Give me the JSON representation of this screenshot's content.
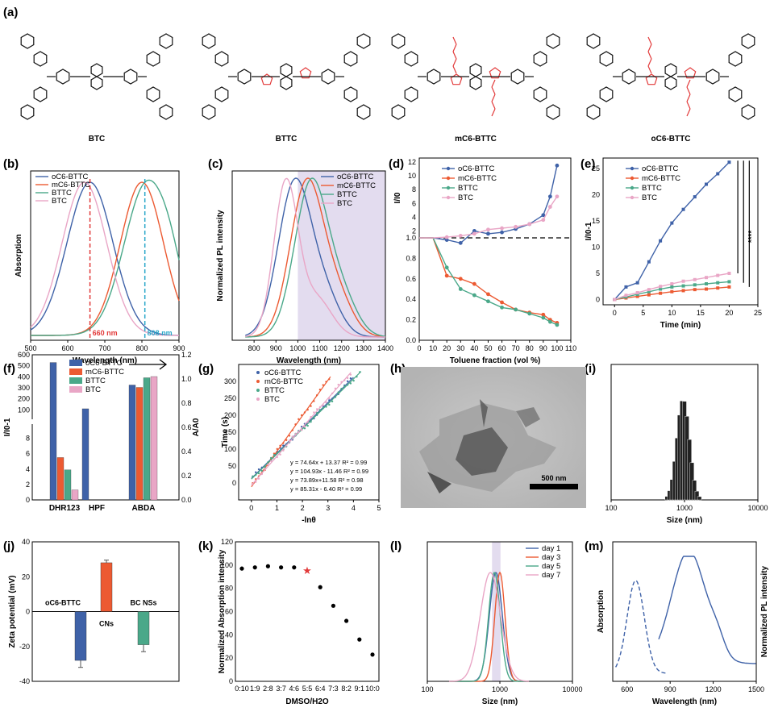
{
  "colors": {
    "c0": "#3f62a8",
    "c1": "#ec5a32",
    "c2": "#4aa889",
    "c3": "#e9a6c6",
    "red": "#e23a3a",
    "cyan": "#2aa7c9",
    "shade": "#e3dcef",
    "black": "#222222"
  },
  "panel_letters": {
    "a": "(a)",
    "b": "(b)",
    "c": "(c)",
    "d": "(d)",
    "e": "(e)",
    "f": "(f)",
    "g": "(g)",
    "h": "(h)",
    "i": "(i)",
    "j": "(j)",
    "k": "(k)",
    "l": "(l)",
    "m": "(m)"
  },
  "molecules": [
    "BTC",
    "BTTC",
    "mC6-BTTC",
    "oC6-BTTC"
  ],
  "legend4": [
    "oC6-BTTC",
    "mC6-BTTC",
    "BTTC",
    "BTC"
  ],
  "chart_data": [
    {
      "panel": "b",
      "type": "line",
      "xlabel": "Wavelength (nm)",
      "ylabel": "Absorption",
      "xlim": [
        500,
        900
      ],
      "xticks": [
        "500",
        "600",
        "700",
        "800",
        "900"
      ],
      "annotations": [
        "660 nm",
        "808 nm"
      ],
      "vlines": [
        660,
        808
      ],
      "series": [
        {
          "name": "oC6-BTTC",
          "peak": 660
        },
        {
          "name": "mC6-BTTC",
          "peak": 800
        },
        {
          "name": "BTTC",
          "peak": 815
        },
        {
          "name": "BTC",
          "peak": 645
        }
      ]
    },
    {
      "panel": "c",
      "type": "line",
      "xlabel": "Wavelength (nm)",
      "ylabel": "Normalized PL intensity",
      "xlim": [
        700,
        1400
      ],
      "xticks": [
        "800",
        "900",
        "1000",
        "1100",
        "1200",
        "1300",
        "1400"
      ],
      "shaded_from": 1000,
      "series": [
        {
          "name": "oC6-BTTC",
          "peak": 985
        },
        {
          "name": "mC6-BTTC",
          "peak": 1040
        },
        {
          "name": "BTTC",
          "peak": 1060
        },
        {
          "name": "BTC",
          "peak": 945
        }
      ]
    },
    {
      "panel": "d",
      "type": "line",
      "xlabel": "Toluene fraction (vol %)",
      "ylabel": "I/I0",
      "xticks": [
        "0",
        "10",
        "20",
        "30",
        "40",
        "50",
        "60",
        "70",
        "80",
        "90",
        "100",
        "110"
      ],
      "yticks_low": [
        "0.0",
        "0.2",
        "0.4",
        "0.6",
        "0.8",
        "1.0"
      ],
      "yticks_high": [
        "2",
        "4",
        "6",
        "8",
        "10",
        "12"
      ],
      "series": [
        {
          "name": "oC6-BTTC",
          "x": [
            20,
            30,
            40,
            50,
            60,
            70,
            80,
            90,
            95,
            100
          ],
          "y": [
            0.98,
            0.95,
            2.0,
            1.6,
            1.8,
            2.3,
            3.0,
            4.3,
            7.0,
            11.5
          ]
        },
        {
          "name": "mC6-BTTC",
          "x": [
            20,
            30,
            40,
            50,
            60,
            70,
            80,
            90,
            95,
            100
          ],
          "y": [
            0.63,
            0.6,
            0.55,
            0.45,
            0.37,
            0.3,
            0.27,
            0.25,
            0.2,
            0.17
          ]
        },
        {
          "name": "BTTC",
          "x": [
            20,
            30,
            40,
            50,
            60,
            70,
            80,
            90,
            95,
            100
          ],
          "y": [
            0.71,
            0.5,
            0.44,
            0.38,
            0.32,
            0.3,
            0.26,
            0.22,
            0.18,
            0.15
          ]
        },
        {
          "name": "BTC",
          "x": [
            20,
            30,
            40,
            50,
            60,
            70,
            80,
            90,
            95,
            100
          ],
          "y": [
            1.1,
            1.3,
            1.6,
            2.2,
            2.4,
            2.6,
            3.0,
            3.6,
            5.5,
            7.0
          ]
        }
      ]
    },
    {
      "panel": "e",
      "type": "line",
      "xlabel": "Time (min)",
      "ylabel": "I/I0-1",
      "xlim": [
        -2,
        25
      ],
      "ylim": [
        -1,
        27
      ],
      "xticks": [
        "0",
        "5",
        "10",
        "15",
        "20",
        "25"
      ],
      "yticks": [
        "0",
        "5",
        "10",
        "15",
        "20",
        "25"
      ],
      "significance": "****",
      "series": [
        {
          "name": "oC6-BTTC",
          "x": [
            0,
            2,
            4,
            6,
            8,
            10,
            12,
            14,
            16,
            18,
            20
          ],
          "y": [
            0,
            2.4,
            3.2,
            7.2,
            11.2,
            14.6,
            17.2,
            19.6,
            22.0,
            24.0,
            26.2
          ]
        },
        {
          "name": "mC6-BTTC",
          "x": [
            0,
            2,
            4,
            6,
            8,
            10,
            12,
            14,
            16,
            18,
            20
          ],
          "y": [
            0,
            0.3,
            0.6,
            0.9,
            1.2,
            1.5,
            1.7,
            1.9,
            2.0,
            2.2,
            2.4
          ]
        },
        {
          "name": "BTTC",
          "x": [
            0,
            2,
            4,
            6,
            8,
            10,
            12,
            14,
            16,
            18,
            20
          ],
          "y": [
            0,
            0.5,
            1.0,
            1.5,
            2.0,
            2.4,
            2.6,
            2.8,
            3.0,
            3.2,
            3.4
          ]
        },
        {
          "name": "BTC",
          "x": [
            0,
            2,
            4,
            6,
            8,
            10,
            12,
            14,
            16,
            18,
            20
          ],
          "y": [
            0,
            0.8,
            1.3,
            1.9,
            2.5,
            3.0,
            3.5,
            3.8,
            4.2,
            4.6,
            5.0
          ]
        }
      ]
    },
    {
      "panel": "f",
      "type": "bar",
      "categories": [
        "DHR123",
        "HPF",
        "ABDA"
      ],
      "ylabel_left": "I/I0-1",
      "ylabel_right": "A/A0",
      "yticks_left_high": [
        "100",
        "200",
        "300",
        "400",
        "500",
        "600"
      ],
      "yticks_left_low": [
        "0",
        "2",
        "4",
        "6",
        "8"
      ],
      "yticks_right": [
        "0.0",
        "0.2",
        "0.4",
        "0.6",
        "0.8",
        "1.0",
        "1.2"
      ],
      "series": [
        {
          "name": "oC6-BTTC",
          "values": [
            530,
            110,
            0.95
          ]
        },
        {
          "name": "mC6-BTTC",
          "values": [
            5.5,
            0,
            0.93
          ]
        },
        {
          "name": "BTTC",
          "values": [
            3.9,
            0,
            1.01
          ]
        },
        {
          "name": "BTC",
          "values": [
            1.3,
            0,
            1.02
          ]
        }
      ]
    },
    {
      "panel": "g",
      "type": "scatter",
      "xlabel": "-lnθ",
      "ylabel": "Time (s)",
      "xlim": [
        -0.5,
        5
      ],
      "ylim": [
        -50,
        350
      ],
      "xticks": [
        "0",
        "1",
        "2",
        "3",
        "4",
        "5"
      ],
      "yticks": [
        "0",
        "50",
        "100",
        "150",
        "200",
        "250",
        "300"
      ],
      "fits": [
        "y = 74.64x + 13.37   R² = 0.99",
        "y = 104.93x - 11.46  R² = 0.99",
        "y = 73.89x+11.58    R² = 0.98",
        "y = 85.31x - 6.40    R² = 0.99"
      ],
      "series": [
        {
          "name": "oC6-BTTC",
          "slope": 74.64,
          "intercept": 13.37,
          "xmax": 4
        },
        {
          "name": "mC6-BTTC",
          "slope": 104.93,
          "intercept": -11.46,
          "xmax": 3.1
        },
        {
          "name": "BTTC",
          "slope": 73.89,
          "intercept": 11.58,
          "xmax": 4.3
        },
        {
          "name": "BTC",
          "slope": 85.31,
          "intercept": -6.4,
          "xmax": 3.9
        }
      ]
    },
    {
      "panel": "i",
      "type": "bar",
      "xlabel": "Size (nm)",
      "xscale": "log",
      "xticks": [
        "100",
        "1000",
        "10000"
      ],
      "mean": 900
    },
    {
      "panel": "j",
      "type": "bar",
      "ylabel": "Zeta potential (mV)",
      "ylim": [
        -40,
        40
      ],
      "yticks": [
        "-40",
        "-20",
        "0",
        "20",
        "40"
      ],
      "categories": [
        "oC6-BTTC",
        "CNs",
        "BC NSs"
      ],
      "values": [
        -28,
        28,
        -19
      ]
    },
    {
      "panel": "k",
      "type": "scatter",
      "xlabel": "DMSO/H2O",
      "ylabel": "Normalized Absorption intensity",
      "ylim": [
        0,
        120
      ],
      "yticks": [
        "0",
        "20",
        "40",
        "60",
        "80",
        "100",
        "120"
      ],
      "categories": [
        "0:10",
        "1:9",
        "2:8",
        "3:7",
        "4:6",
        "5:5",
        "6:4",
        "7:3",
        "8:2",
        "9:1",
        "10:0"
      ],
      "values": [
        97,
        98,
        99,
        98,
        98,
        95,
        81,
        65,
        52,
        36,
        23
      ],
      "highlight_index": 5
    },
    {
      "panel": "l",
      "type": "line",
      "xlabel": "Size (nm)",
      "xscale": "log",
      "xticks": [
        "100",
        "1000",
        "10000"
      ],
      "series": [
        {
          "name": "day 1",
          "peak": 880
        },
        {
          "name": "day 3",
          "peak": 1000
        },
        {
          "name": "day 5",
          "peak": 840
        },
        {
          "name": "day 7",
          "peak": 740
        }
      ]
    },
    {
      "panel": "m",
      "type": "line",
      "xlabel": "Wavelength (nm)",
      "ylabel": "Absorption",
      "ylabel_right": "Normalized PL intensity",
      "xticks": [
        "600",
        "900",
        "1200",
        "1500"
      ],
      "series": [
        {
          "name": "Absorption",
          "peak": 660
        },
        {
          "name": "PL",
          "peak": 1030
        }
      ]
    }
  ],
  "tem": {
    "scalebar": "500 nm"
  }
}
